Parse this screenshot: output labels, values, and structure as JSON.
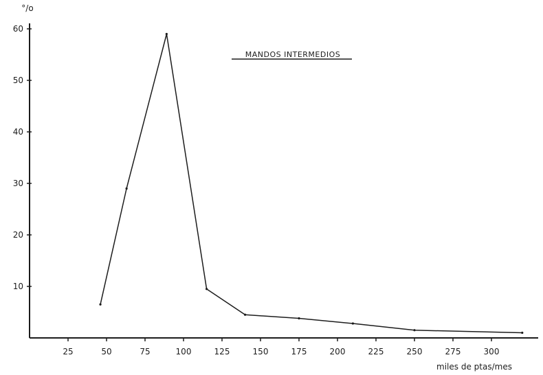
{
  "chart_data": {
    "type": "line",
    "title": "MANDOS INTERMEDIOS",
    "ylabel": "°/o",
    "xlabel": "miles de ptas/mes",
    "xlim": [
      0,
      325
    ],
    "ylim": [
      0,
      60
    ],
    "x_ticks": [
      25,
      50,
      75,
      100,
      125,
      150,
      175,
      200,
      225,
      250,
      275,
      300
    ],
    "y_ticks": [
      10,
      20,
      30,
      40,
      50,
      60
    ],
    "series": [
      {
        "x": [
          46,
          63,
          89,
          115,
          140,
          175,
          210,
          250,
          320
        ],
        "y": [
          6.5,
          29,
          59,
          9.5,
          4.5,
          3.8,
          2.8,
          1.5,
          1.0
        ]
      }
    ],
    "grid": false
  }
}
